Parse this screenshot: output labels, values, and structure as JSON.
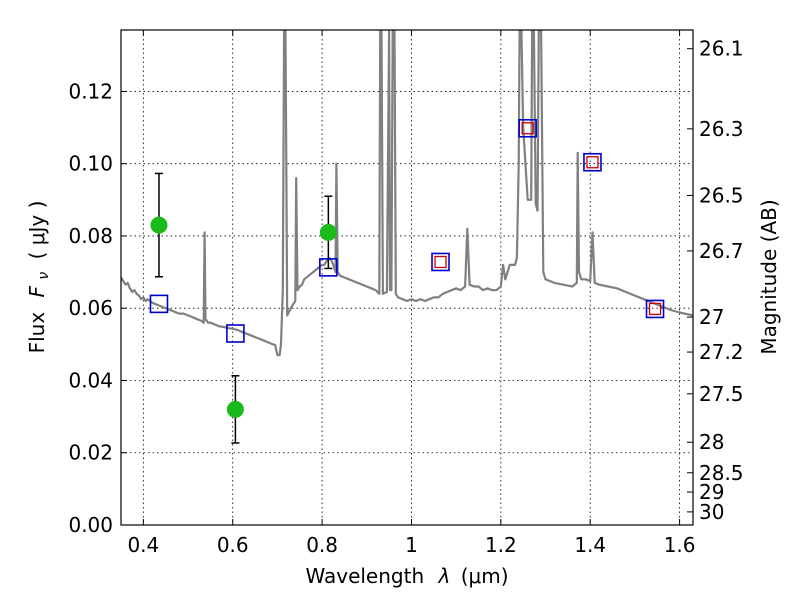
{
  "chart_data": {
    "type": "scatter",
    "xlabel_text": "Wavelength",
    "xlabel_symbol": "λ",
    "xlabel_unit": "(μm)",
    "ylabel_text": "Flux",
    "ylabel_symbol": "F",
    "ylabel_sub": "ν",
    "ylabel_unit": "( μJy )",
    "y2label": "Magnitude (AB)",
    "xlim": [
      0.35,
      1.63
    ],
    "ylim": [
      0.0,
      0.137
    ],
    "grid": true,
    "xticks": [
      {
        "value": 0.4,
        "label": "0.4"
      },
      {
        "value": 0.6,
        "label": "0.6"
      },
      {
        "value": 0.8,
        "label": "0.8"
      },
      {
        "value": 1.0,
        "label": "1"
      },
      {
        "value": 1.2,
        "label": "1.2"
      },
      {
        "value": 1.4,
        "label": "1.4"
      },
      {
        "value": 1.6,
        "label": "1.6"
      }
    ],
    "yticks": [
      {
        "value": 0.0,
        "label": "0.00"
      },
      {
        "value": 0.02,
        "label": "0.02"
      },
      {
        "value": 0.04,
        "label": "0.04"
      },
      {
        "value": 0.06,
        "label": "0.06"
      },
      {
        "value": 0.08,
        "label": "0.08"
      },
      {
        "value": 0.1,
        "label": "0.10"
      },
      {
        "value": 0.12,
        "label": "0.12"
      }
    ],
    "mag_ticks": [
      {
        "mag": 26.1,
        "label": "26.1"
      },
      {
        "mag": 26.3,
        "label": "26.3"
      },
      {
        "mag": 26.5,
        "label": "26.5"
      },
      {
        "mag": 26.7,
        "label": "26.7"
      },
      {
        "mag": 27.0,
        "label": "27"
      },
      {
        "mag": 27.2,
        "label": "27.2"
      },
      {
        "mag": 27.5,
        "label": "27.5"
      },
      {
        "mag": 28.0,
        "label": "28"
      },
      {
        "mag": 28.5,
        "label": "28.5"
      },
      {
        "mag": 29.0,
        "label": "29"
      },
      {
        "mag": 30.0,
        "label": "30"
      }
    ],
    "observed_points": {
      "color": "#1aba1a",
      "points": [
        {
          "x": 0.435,
          "y": 0.083,
          "yerr": 0.0143
        },
        {
          "x": 0.606,
          "y": 0.032,
          "yerr": 0.0093
        },
        {
          "x": 0.814,
          "y": 0.081,
          "yerr": 0.01
        }
      ]
    },
    "model_squares_blue": {
      "color": "#0000cc",
      "points": [
        {
          "x": 0.435,
          "y": 0.0612
        },
        {
          "x": 0.606,
          "y": 0.053
        },
        {
          "x": 0.814,
          "y": 0.0713
        },
        {
          "x": 1.065,
          "y": 0.0728
        },
        {
          "x": 1.26,
          "y": 0.1098
        },
        {
          "x": 1.405,
          "y": 0.1004
        },
        {
          "x": 1.545,
          "y": 0.0598
        }
      ]
    },
    "model_squares_red": {
      "color": "#cc0000",
      "points": [
        {
          "x": 1.065,
          "y": 0.0728
        },
        {
          "x": 1.26,
          "y": 0.1098
        },
        {
          "x": 1.405,
          "y": 0.1004
        },
        {
          "x": 1.545,
          "y": 0.0598
        }
      ]
    },
    "spectrum": {
      "color": "#808080",
      "points": [
        [
          0.35,
          0.0685
        ],
        [
          0.355,
          0.0675
        ],
        [
          0.36,
          0.0665
        ],
        [
          0.365,
          0.067
        ],
        [
          0.37,
          0.0655
        ],
        [
          0.375,
          0.0645
        ],
        [
          0.38,
          0.065
        ],
        [
          0.385,
          0.064
        ],
        [
          0.39,
          0.0635
        ],
        [
          0.395,
          0.0625
        ],
        [
          0.4,
          0.063
        ],
        [
          0.405,
          0.062
        ],
        [
          0.41,
          0.0625
        ],
        [
          0.42,
          0.0615
        ],
        [
          0.43,
          0.061
        ],
        [
          0.44,
          0.0605
        ],
        [
          0.45,
          0.06
        ],
        [
          0.46,
          0.0595
        ],
        [
          0.47,
          0.059
        ],
        [
          0.48,
          0.0585
        ],
        [
          0.49,
          0.0585
        ],
        [
          0.5,
          0.058
        ],
        [
          0.51,
          0.0575
        ],
        [
          0.52,
          0.057
        ],
        [
          0.53,
          0.0565
        ],
        [
          0.535,
          0.056
        ],
        [
          0.537,
          0.081
        ],
        [
          0.539,
          0.057
        ],
        [
          0.545,
          0.056
        ],
        [
          0.55,
          0.056
        ],
        [
          0.56,
          0.0555
        ],
        [
          0.57,
          0.055
        ],
        [
          0.58,
          0.0548
        ],
        [
          0.59,
          0.0545
        ],
        [
          0.6,
          0.0543
        ],
        [
          0.61,
          0.054
        ],
        [
          0.62,
          0.0535
        ],
        [
          0.63,
          0.053
        ],
        [
          0.64,
          0.0525
        ],
        [
          0.65,
          0.052
        ],
        [
          0.66,
          0.0515
        ],
        [
          0.67,
          0.051
        ],
        [
          0.68,
          0.0505
        ],
        [
          0.69,
          0.05
        ],
        [
          0.695,
          0.0498
        ],
        [
          0.7,
          0.047
        ],
        [
          0.705,
          0.047
        ],
        [
          0.708,
          0.05
        ],
        [
          0.712,
          0.065
        ],
        [
          0.715,
          0.137
        ],
        [
          0.718,
          0.137
        ],
        [
          0.722,
          0.058
        ],
        [
          0.73,
          0.06
        ],
        [
          0.735,
          0.061
        ],
        [
          0.74,
          0.062
        ],
        [
          0.742,
          0.096
        ],
        [
          0.745,
          0.065
        ],
        [
          0.75,
          0.066
        ],
        [
          0.755,
          0.0665
        ],
        [
          0.76,
          0.068
        ],
        [
          0.77,
          0.069
        ],
        [
          0.78,
          0.07
        ],
        [
          0.79,
          0.071
        ],
        [
          0.8,
          0.072
        ],
        [
          0.805,
          0.072
        ],
        [
          0.81,
          0.073
        ],
        [
          0.815,
          0.074
        ],
        [
          0.82,
          0.0735
        ],
        [
          0.825,
          0.072
        ],
        [
          0.83,
          0.07
        ],
        [
          0.832,
          0.1
        ],
        [
          0.835,
          0.07
        ],
        [
          0.84,
          0.069
        ],
        [
          0.85,
          0.0685
        ],
        [
          0.86,
          0.068
        ],
        [
          0.87,
          0.0675
        ],
        [
          0.88,
          0.067
        ],
        [
          0.89,
          0.0665
        ],
        [
          0.9,
          0.066
        ],
        [
          0.91,
          0.0655
        ],
        [
          0.92,
          0.065
        ],
        [
          0.928,
          0.064
        ],
        [
          0.93,
          0.137
        ],
        [
          0.933,
          0.137
        ],
        [
          0.936,
          0.064
        ],
        [
          0.945,
          0.0645
        ],
        [
          0.95,
          0.137
        ],
        [
          0.952,
          0.065
        ],
        [
          0.955,
          0.065
        ],
        [
          0.958,
          0.137
        ],
        [
          0.962,
          0.137
        ],
        [
          0.965,
          0.064
        ],
        [
          0.97,
          0.063
        ],
        [
          0.98,
          0.0625
        ],
        [
          0.99,
          0.062
        ],
        [
          1.0,
          0.0625
        ],
        [
          1.01,
          0.062
        ],
        [
          1.02,
          0.0625
        ],
        [
          1.03,
          0.062
        ],
        [
          1.04,
          0.0625
        ],
        [
          1.05,
          0.063
        ],
        [
          1.06,
          0.063
        ],
        [
          1.07,
          0.064
        ],
        [
          1.08,
          0.0645
        ],
        [
          1.09,
          0.065
        ],
        [
          1.1,
          0.0655
        ],
        [
          1.11,
          0.065
        ],
        [
          1.12,
          0.066
        ],
        [
          1.125,
          0.082
        ],
        [
          1.13,
          0.0665
        ],
        [
          1.14,
          0.066
        ],
        [
          1.15,
          0.066
        ],
        [
          1.16,
          0.065
        ],
        [
          1.17,
          0.0655
        ],
        [
          1.18,
          0.065
        ],
        [
          1.19,
          0.065
        ],
        [
          1.2,
          0.066
        ],
        [
          1.205,
          0.072
        ],
        [
          1.21,
          0.068
        ],
        [
          1.22,
          0.072
        ],
        [
          1.228,
          0.072
        ],
        [
          1.232,
          0.072
        ],
        [
          1.236,
          0.074
        ],
        [
          1.24,
          0.1
        ],
        [
          1.242,
          0.137
        ],
        [
          1.246,
          0.137
        ],
        [
          1.25,
          0.11
        ],
        [
          1.26,
          0.09
        ],
        [
          1.268,
          0.09
        ],
        [
          1.27,
          0.137
        ],
        [
          1.274,
          0.137
        ],
        [
          1.278,
          0.089
        ],
        [
          1.282,
          0.087
        ],
        [
          1.285,
          0.137
        ],
        [
          1.29,
          0.137
        ],
        [
          1.295,
          0.07
        ],
        [
          1.3,
          0.068
        ],
        [
          1.32,
          0.067
        ],
        [
          1.34,
          0.0665
        ],
        [
          1.36,
          0.066
        ],
        [
          1.37,
          0.067
        ],
        [
          1.372,
          0.103
        ],
        [
          1.375,
          0.07
        ],
        [
          1.38,
          0.068
        ],
        [
          1.39,
          0.068
        ],
        [
          1.4,
          0.0675
        ],
        [
          1.405,
          0.081
        ],
        [
          1.41,
          0.067
        ],
        [
          1.42,
          0.0665
        ],
        [
          1.44,
          0.066
        ],
        [
          1.46,
          0.0655
        ],
        [
          1.48,
          0.0645
        ],
        [
          1.5,
          0.0635
        ],
        [
          1.52,
          0.0625
        ],
        [
          1.54,
          0.0615
        ],
        [
          1.56,
          0.0605
        ],
        [
          1.58,
          0.0595
        ],
        [
          1.6,
          0.0588
        ],
        [
          1.63,
          0.058
        ]
      ]
    }
  }
}
